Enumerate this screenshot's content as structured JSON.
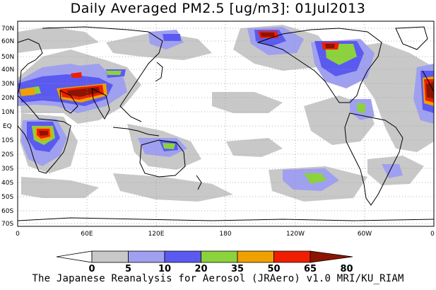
{
  "title": "Daily Averaged PM2.5 [ug/m3]: 01Jul2013",
  "credit": "The Japanese Reanalysis for Aerosol (JRAero) v1.0 MRI/KU_RIAM",
  "latitude_labels": [
    "70N",
    "60N",
    "50N",
    "40N",
    "30N",
    "20N",
    "10N",
    "EQ",
    "10S",
    "20S",
    "30S",
    "40S",
    "50S",
    "60S",
    "70S"
  ],
  "longitude_labels": [
    "0",
    "60E",
    "120E",
    "180",
    "120W",
    "60W",
    "0"
  ],
  "colorbar": {
    "thresholds": [
      "0",
      "5",
      "10",
      "20",
      "35",
      "50",
      "65",
      "80"
    ],
    "colors": [
      "#ffffff",
      "#c8c8c8",
      "#a0a0f0",
      "#5a5af0",
      "#8cd23c",
      "#f0a000",
      "#f01e00",
      "#8c1400"
    ]
  },
  "colors": {
    "ocean": "#ffffff",
    "coastline": "#000000",
    "gridline": "#9a9a9a"
  }
}
